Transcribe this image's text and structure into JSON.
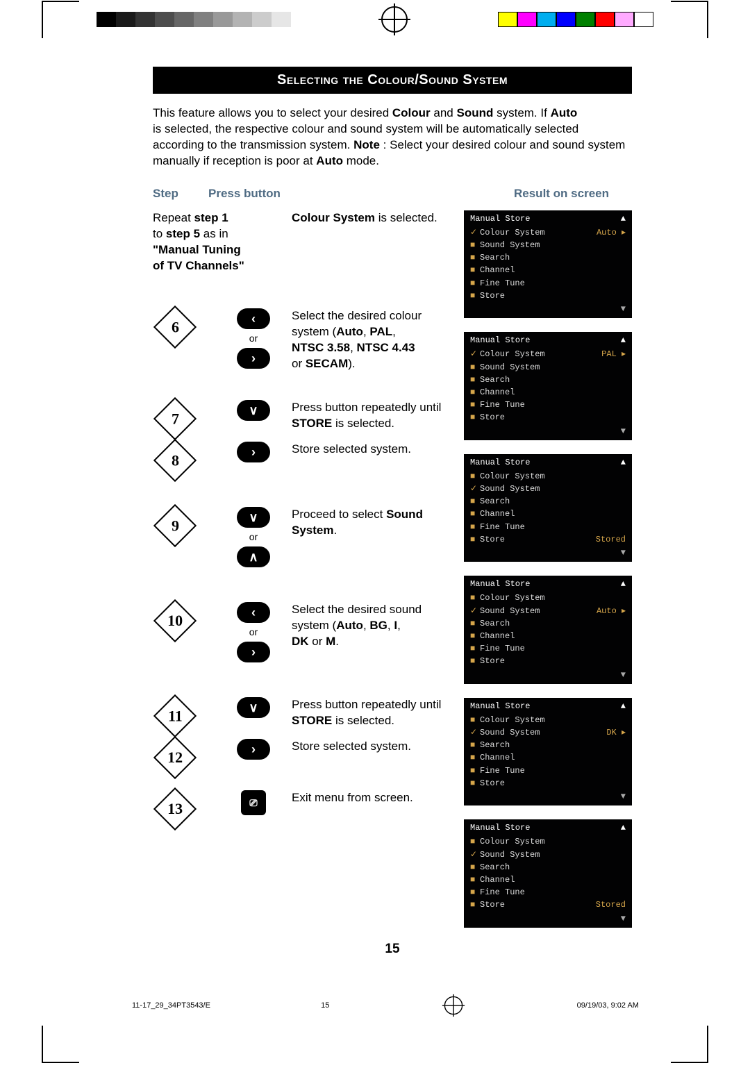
{
  "palette_gray": [
    "#000000",
    "#1a1a1a",
    "#333333",
    "#4d4d4d",
    "#666666",
    "#808080",
    "#999999",
    "#b3b3b3",
    "#cccccc",
    "#e6e6e6"
  ],
  "palette_color": [
    "#ffff00",
    "#ff00ff",
    "#00aeef",
    "#0000ff",
    "#008000",
    "#ff0000",
    "#ffaaff",
    "#ffffff"
  ],
  "banner_title": "Selecting the  Colour/Sound System",
  "intro_lines": [
    "This feature allows you to select your desired ",
    "Colour",
    " and ",
    "Sound",
    " system. If ",
    "Auto"
  ],
  "intro_rest": "is selected, the respective colour and sound system will be automatically selected according to the transmission system. ",
  "intro_note_label": "Note",
  "intro_note_rest": " : Select your desired colour and sound system manually if reception is poor at ",
  "intro_auto": "Auto",
  "intro_mode": " mode.",
  "headers": {
    "step": "Step",
    "press": "Press button",
    "result": "Result on screen"
  },
  "row0": {
    "c1a": "Repeat ",
    "c1b": "step 1",
    "c1c": "to ",
    "c1d": "step 5",
    "c1e": " as in",
    "c1f": "\"Manual Tuning",
    "c1g": "of TV Channels\"",
    "desc1": "Colour System",
    "desc2": " is selected."
  },
  "step6": {
    "num": "6",
    "or": "or",
    "d1": "Select the desired colour system  (",
    "d_auto": "Auto",
    "d_comma": ", ",
    "d_pal": "PAL",
    "d2": "NTSC 3.58",
    "d3": "NTSC 4.43",
    "d_or": " or ",
    "d_secam": "SECAM",
    "d_end": ")."
  },
  "step7": {
    "num": "7",
    "d1": "Press button repeatedly until ",
    "d_store": "STORE",
    "d2": " is selected."
  },
  "step8": {
    "num": "8",
    "d1": "Store selected system."
  },
  "step9": {
    "num": "9",
    "or": "or",
    "d1": "Proceed to select ",
    "d_sound": "Sound System",
    "d2": "."
  },
  "step10": {
    "num": "10",
    "or": "or",
    "d1": "Select the desired sound system  (",
    "d_auto": "Auto",
    "d_c": ", ",
    "d_bg": "BG",
    "d_i": "I",
    "d_dk": "DK",
    "d_or": " or ",
    "d_m": "M",
    "d_end": "."
  },
  "step11": {
    "num": "11",
    "d1": "Press button repeatedly until ",
    "d_store": "STORE",
    "d2": " is selected."
  },
  "step12": {
    "num": "12",
    "d1": "Store selected system."
  },
  "step13": {
    "num": "13",
    "d1": "Exit menu from screen."
  },
  "glyph": {
    "left": "‹",
    "right": "›",
    "down": "∨",
    "up": "∧",
    "menu": "⎚"
  },
  "osd_title": "Manual Store",
  "osd_items": [
    "Colour System",
    "Sound System",
    "Search",
    "Channel",
    "Fine Tune",
    "Store"
  ],
  "osd_val": {
    "auto": "Auto ▸",
    "pal": "PAL  ▸",
    "dk": "DK  ▸",
    "stored": "Stored"
  },
  "osd_arrow_up": "▲",
  "osd_arrow_dn": "▼",
  "osd_tick": "✓",
  "osd_bullet": "■",
  "page_number": "15",
  "footer": {
    "left": "11-17_29_34PT3543/E",
    "mid": "15",
    "right": "09/19/03, 9:02 AM"
  }
}
